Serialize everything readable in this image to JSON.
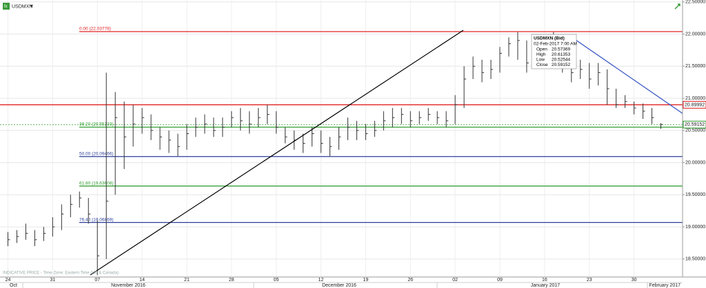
{
  "symbol": "USDMXN",
  "footer": "INDICATIVE PRICE - Time Zone: Eastern Time (US & Canada)",
  "tooltip": {
    "title": "USDMXN (Bid)",
    "time": "02-Feb-2017 7:00 AM",
    "rows": [
      [
        "Open",
        20.57369
      ],
      [
        "High",
        20.61353
      ],
      [
        "Low",
        20.52544
      ],
      [
        "Close",
        20.59152
      ]
    ]
  },
  "months": [
    "Oct",
    "November 2016",
    "December 2016",
    "January 2017",
    "February 2017"
  ],
  "chart_data": {
    "type": "hlc",
    "categories": [
      "24",
      null,
      null,
      null,
      null,
      "31",
      null,
      null,
      null,
      null,
      "07",
      null,
      null,
      null,
      null,
      "14",
      null,
      null,
      null,
      null,
      "21",
      null,
      null,
      null,
      null,
      "28",
      null,
      null,
      null,
      null,
      "05",
      null,
      null,
      null,
      null,
      "12",
      null,
      null,
      null,
      null,
      "19",
      null,
      null,
      null,
      null,
      "26",
      null,
      null,
      null,
      null,
      "02",
      null,
      null,
      null,
      null,
      "09",
      null,
      null,
      null,
      null,
      "16",
      null,
      null,
      null,
      null,
      "23",
      null,
      null,
      null,
      null,
      "30",
      null,
      null,
      null
    ],
    "high": [
      18.92,
      18.95,
      19.05,
      18.95,
      19.0,
      19.15,
      19.35,
      19.5,
      19.55,
      19.45,
      19.1,
      21.4,
      21.1,
      20.95,
      20.9,
      20.85,
      20.75,
      20.55,
      20.5,
      20.45,
      20.6,
      20.7,
      20.75,
      20.7,
      20.7,
      20.8,
      20.85,
      20.8,
      20.85,
      20.9,
      20.8,
      20.55,
      20.5,
      20.45,
      20.55,
      20.5,
      20.4,
      20.55,
      20.7,
      20.65,
      20.6,
      20.65,
      20.8,
      20.85,
      20.85,
      20.8,
      20.8,
      20.85,
      20.8,
      20.8,
      21.05,
      21.5,
      21.65,
      21.6,
      21.6,
      21.8,
      21.95,
      22.03,
      21.9,
      21.85,
      21.9,
      22.03,
      21.95,
      21.65,
      21.6,
      21.55,
      21.55,
      21.45,
      21.15,
      21.05,
      20.95,
      20.92,
      20.85,
      20.61353
    ],
    "low": [
      18.7,
      18.75,
      18.8,
      18.7,
      18.78,
      18.85,
      18.95,
      19.15,
      19.3,
      19.05,
      18.25,
      18.5,
      19.5,
      19.9,
      20.25,
      20.45,
      20.35,
      20.2,
      20.15,
      20.1,
      20.2,
      20.4,
      20.45,
      20.4,
      20.4,
      20.55,
      20.5,
      20.45,
      20.55,
      20.6,
      20.45,
      20.3,
      20.2,
      20.15,
      20.25,
      20.15,
      20.1,
      20.2,
      20.35,
      20.35,
      20.35,
      20.4,
      20.5,
      20.55,
      20.6,
      20.55,
      20.6,
      20.65,
      20.6,
      20.55,
      20.6,
      20.85,
      21.3,
      21.25,
      21.3,
      21.4,
      21.65,
      21.6,
      21.4,
      21.5,
      21.6,
      21.55,
      21.4,
      21.25,
      21.3,
      21.15,
      21.2,
      20.9,
      20.85,
      20.85,
      20.75,
      20.68,
      20.6,
      20.52544
    ],
    "close": [
      18.8,
      18.85,
      18.9,
      18.8,
      18.9,
      19.0,
      19.2,
      19.35,
      19.45,
      19.2,
      18.55,
      19.4,
      20.7,
      20.4,
      20.6,
      20.7,
      20.5,
      20.4,
      20.35,
      20.25,
      20.45,
      20.55,
      20.6,
      20.5,
      20.55,
      20.7,
      20.65,
      20.6,
      20.7,
      20.75,
      20.55,
      20.4,
      20.35,
      20.3,
      20.45,
      20.3,
      20.25,
      20.4,
      20.55,
      20.5,
      20.45,
      20.5,
      20.65,
      20.7,
      20.75,
      20.65,
      20.7,
      20.75,
      20.7,
      20.65,
      20.9,
      21.3,
      21.5,
      21.4,
      21.45,
      21.7,
      21.85,
      21.9,
      21.55,
      21.7,
      21.8,
      21.95,
      21.6,
      21.4,
      21.45,
      21.3,
      21.4,
      21.15,
      20.9,
      20.95,
      20.85,
      20.8,
      20.7,
      20.59152
    ],
    "color": "#333333",
    "ylim": [
      18.22,
      22.53
    ],
    "yticks": [
      {
        "value": 18.5,
        "label": "18.50000"
      },
      {
        "value": 19,
        "label": "19.00000"
      },
      {
        "value": 19.5,
        "label": "19.50000"
      },
      {
        "value": 20,
        "label": "20.00000"
      },
      {
        "value": 20.5,
        "label": "20.50000"
      },
      {
        "value": 21,
        "label": "21.00000"
      },
      {
        "value": 21.5,
        "label": "21.50000"
      },
      {
        "value": 22,
        "label": "22.00000"
      },
      {
        "value": 22.5,
        "label": "22.50000"
      }
    ],
    "grid": true,
    "levels": [
      {
        "label": "0.00 (22.03778)",
        "value": 22.03778,
        "color": "#e02020"
      },
      {
        "label": "38.20 (20.55133)",
        "value": 20.55133,
        "color": "#2a9a2a"
      },
      {
        "label": "50.00 (20.09466)",
        "value": 20.09466,
        "color": "#2c3e9a"
      },
      {
        "label": "61.80 (19.63608)",
        "value": 19.63608,
        "color": "#2a9a2a"
      },
      {
        "label": "76.40 (19.06869)",
        "value": 19.06869,
        "color": "#2c3e9a"
      }
    ],
    "markers": [
      {
        "value": 20.89992,
        "color": "#e02020"
      },
      {
        "value": 20.59152,
        "color": "#2a9a2a"
      }
    ]
  }
}
